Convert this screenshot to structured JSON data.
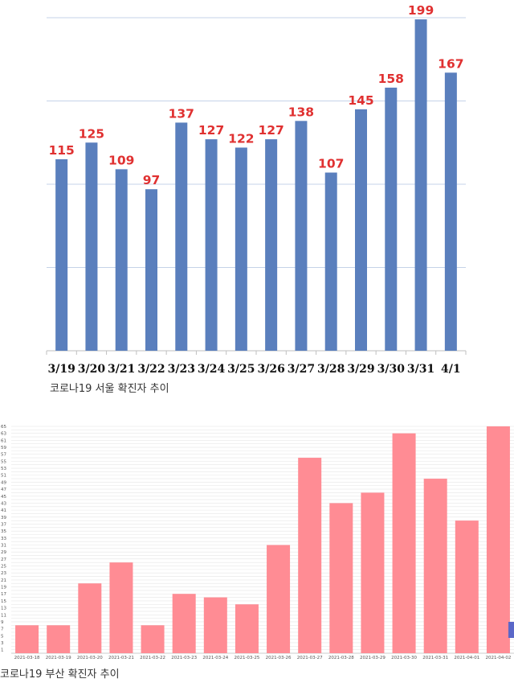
{
  "chart_data": [
    {
      "type": "bar",
      "caption": "코로나19 서울 확진자 추이",
      "categories": [
        "3/19",
        "3/20",
        "3/21",
        "3/22",
        "3/23",
        "3/24",
        "3/25",
        "3/26",
        "3/27",
        "3/28",
        "3/29",
        "3/30",
        "3/31",
        "4/1"
      ],
      "values": [
        115,
        125,
        109,
        97,
        137,
        127,
        122,
        127,
        138,
        107,
        145,
        158,
        199,
        167
      ],
      "ylim": [
        0,
        200
      ],
      "grid": true,
      "colors": {
        "bar": "#5a7fbd",
        "label": "#e03131",
        "grid": "#c5d3e8"
      }
    },
    {
      "type": "bar",
      "caption": "코로나19 부산 확진자 추이",
      "categories": [
        "2021-03-18",
        "2021-03-19",
        "2021-03-20",
        "2021-03-21",
        "2021-03-22",
        "2021-03-23",
        "2021-03-24",
        "2021-03-25",
        "2021-03-26",
        "2021-03-27",
        "2021-03-28",
        "2021-03-29",
        "2021-03-30",
        "2021-03-31",
        "2021-04-01",
        "2021-04-02"
      ],
      "values": [
        8,
        8,
        20,
        26,
        8,
        17,
        16,
        14,
        31,
        56,
        43,
        46,
        63,
        50,
        38,
        65
      ],
      "yticks": [
        1,
        3,
        5,
        7,
        9,
        11,
        13,
        15,
        17,
        19,
        21,
        23,
        25,
        27,
        29,
        31,
        33,
        35,
        37,
        39,
        41,
        43,
        45,
        47,
        49,
        51,
        53,
        55,
        57,
        59,
        61,
        63,
        65
      ],
      "ylim": [
        0,
        65
      ],
      "grid": true,
      "colors": {
        "bar": "#ff8c94",
        "grid": "#e6e6e6"
      }
    }
  ]
}
